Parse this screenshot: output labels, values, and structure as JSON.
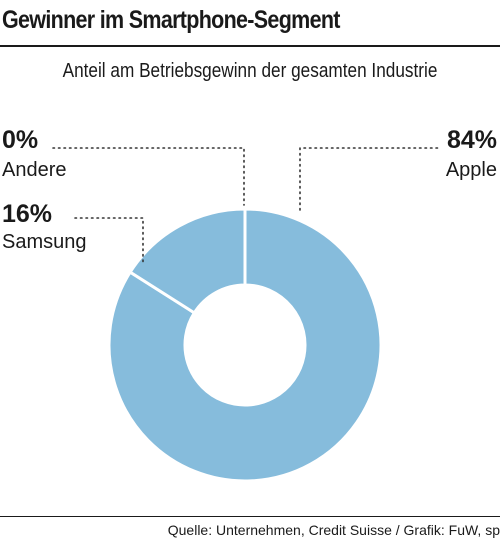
{
  "title": "Gewinner im Smartphone-Segment",
  "subtitle": "Anteil am Betriebsgewinn der gesamten Industrie",
  "source": "Quelle: Unternehmen, Credit Suisse / Grafik: FuW, sp",
  "colors": {
    "slice": "#86bcdc",
    "separator": "#ffffff",
    "text": "#1a1a1a",
    "leader": "#333333"
  },
  "chart_data": {
    "type": "pie",
    "style": "donut",
    "title": "Gewinner im Smartphone-Segment",
    "subtitle": "Anteil am Betriebsgewinn der gesamten Industrie",
    "slices": [
      {
        "name": "Apple",
        "value": 84,
        "label": "84%"
      },
      {
        "name": "Samsung",
        "value": 16,
        "label": "16%"
      },
      {
        "name": "Andere",
        "value": 0,
        "label": "0%"
      }
    ]
  }
}
